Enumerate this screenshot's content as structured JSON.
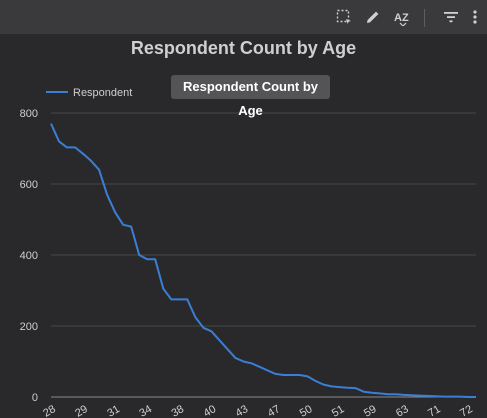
{
  "toolbar": {
    "icons": [
      "select-area-icon",
      "pencil-icon",
      "sort-az-icon",
      "filter-icon",
      "more-vert-icon"
    ],
    "sort_label": "AZ"
  },
  "tooltip": {
    "text": "Respondent Count by Age"
  },
  "colors": {
    "line": "#3a7fd5",
    "background": "#29292b",
    "grid": "#48484a",
    "text": "#cfcfcf"
  },
  "chart_data": {
    "type": "line",
    "title": "Respondent Count by Age",
    "xlabel": "",
    "ylabel": "",
    "ylim": [
      0,
      800
    ],
    "yticks": [
      0,
      200,
      400,
      600,
      800
    ],
    "legend": {
      "position": "top-left",
      "entries": [
        "Respondent"
      ]
    },
    "xtick_labels": [
      {
        "label": "28",
        "index": 0
      },
      {
        "label": "29",
        "index": 4
      },
      {
        "label": "31",
        "index": 8
      },
      {
        "label": "34",
        "index": 12
      },
      {
        "label": "38",
        "index": 16
      },
      {
        "label": "40",
        "index": 20
      },
      {
        "label": "43",
        "index": 24
      },
      {
        "label": "47",
        "index": 28
      },
      {
        "label": "50",
        "index": 32
      },
      {
        "label": "51",
        "index": 36
      },
      {
        "label": "59",
        "index": 40
      },
      {
        "label": "63",
        "index": 44
      },
      {
        "label": "71",
        "index": 48
      },
      {
        "label": "72",
        "index": 52
      }
    ],
    "series": [
      {
        "name": "Respondent",
        "values": [
          770,
          720,
          703,
          703,
          685,
          665,
          640,
          570,
          520,
          485,
          480,
          400,
          388,
          388,
          305,
          275,
          275,
          275,
          225,
          195,
          185,
          160,
          135,
          110,
          100,
          95,
          85,
          75,
          65,
          62,
          62,
          62,
          58,
          45,
          35,
          30,
          28,
          26,
          25,
          15,
          12,
          10,
          8,
          8,
          6,
          5,
          4,
          3,
          2,
          1,
          1,
          1,
          0,
          0
        ]
      }
    ]
  }
}
